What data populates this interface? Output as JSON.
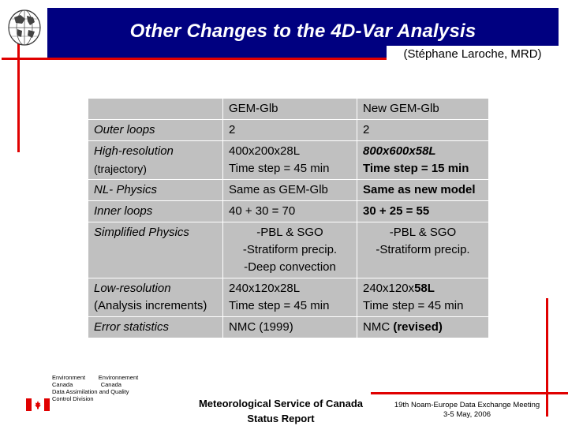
{
  "header": {
    "title": "Other Changes to the 4D-Var Analysis",
    "author": "(Stéphane Laroche, MRD)"
  },
  "table": {
    "col_headers": [
      "",
      "GEM-Glb",
      "New GEM-Glb"
    ],
    "rows": [
      {
        "label": "Outer loops",
        "label_sub": "",
        "gem": [
          "2"
        ],
        "new": [
          "2"
        ]
      },
      {
        "label": "High-resolution",
        "label_sub": "(trajectory)",
        "gem": [
          "400x200x28L",
          "Time step = 45 min"
        ],
        "new": [
          "800x600x58L",
          "Time step = 15 min"
        ]
      },
      {
        "label": "NL- Physics",
        "label_sub": "",
        "gem": [
          "Same as GEM-Glb"
        ],
        "new": [
          "Same as new model"
        ]
      },
      {
        "label": "Inner loops",
        "label_sub": "",
        "gem": [
          "40 + 30 = 70"
        ],
        "new": [
          "30 + 25 = 55"
        ]
      },
      {
        "label": "Simplified Physics",
        "label_sub": "",
        "gem": [
          "-PBL & SGO",
          "-Stratiform precip.",
          "-Deep convection"
        ],
        "new": [
          "-PBL & SGO",
          "-Stratiform precip."
        ]
      },
      {
        "label": "Low-resolution",
        "label_sub": "(Analysis increments)",
        "gem": [
          "240x120x28L",
          "Time step = 45 min"
        ],
        "new_a": "240x120x",
        "new_b": "58L",
        "new_line2": "Time step = 45 min"
      },
      {
        "label": "Error statistics",
        "label_sub": "",
        "gem": [
          "NMC (1999)"
        ],
        "new_a": "NMC ",
        "new_b": "(revised)"
      }
    ]
  },
  "footer": {
    "dept_lines": [
      "Environment        Environnement",
      "Canada                 Canada",
      "Data Assimilation and Quality",
      "Control Division"
    ],
    "center_line1": "Meteorological Service of Canada",
    "center_line2": "Status Report",
    "right_line1": "19th Noam-Europe Data Exchange Meeting",
    "right_line2": "3-5 May, 2006"
  },
  "colors": {
    "title_bar": "#000080",
    "accent_red": "#e00000",
    "table_bg": "#c0c0c0"
  },
  "icons": [
    "globe-icon",
    "canada-flag-icon"
  ]
}
